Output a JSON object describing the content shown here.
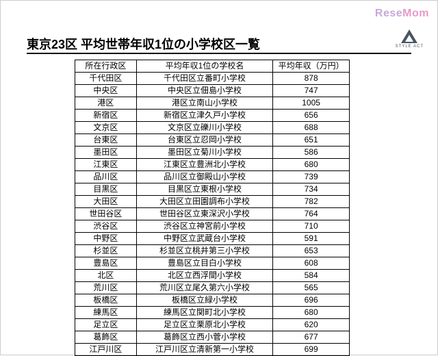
{
  "watermark": {
    "part1": "Rese",
    "part2": "Mom"
  },
  "logo": {
    "text": "STYLE ACT"
  },
  "title": "東京23区 平均世帯年収1位の小学校区一覧",
  "table": {
    "headers": {
      "ward": "所在行政区",
      "school": "平均年収1位の学校名",
      "income": "平均年収（万円）"
    },
    "rows": [
      {
        "ward": "千代田区",
        "school": "千代田区立番町小学校",
        "income": "878"
      },
      {
        "ward": "中央区",
        "school": "中央区立佃島小学校",
        "income": "747"
      },
      {
        "ward": "港区",
        "school": "港区立南山小学校",
        "income": "1005"
      },
      {
        "ward": "新宿区",
        "school": "新宿区立津久戸小学校",
        "income": "656"
      },
      {
        "ward": "文京区",
        "school": "文京区立礫川小学校",
        "income": "688"
      },
      {
        "ward": "台東区",
        "school": "台東区立忍岡小学校",
        "income": "651"
      },
      {
        "ward": "墨田区",
        "school": "墨田区立菊川小学校",
        "income": "586"
      },
      {
        "ward": "江東区",
        "school": "江東区立豊洲北小学校",
        "income": "680"
      },
      {
        "ward": "品川区",
        "school": "品川区立御殿山小学校",
        "income": "739"
      },
      {
        "ward": "目黒区",
        "school": "目黒区立東根小学校",
        "income": "734"
      },
      {
        "ward": "大田区",
        "school": "大田区立田園調布小学校",
        "income": "782"
      },
      {
        "ward": "世田谷区",
        "school": "世田谷区立東深沢小学校",
        "income": "764"
      },
      {
        "ward": "渋谷区",
        "school": "渋谷区立神宮前小学校",
        "income": "710"
      },
      {
        "ward": "中野区",
        "school": "中野区立武蔵台小学校",
        "income": "591"
      },
      {
        "ward": "杉並区",
        "school": "杉並区立桃井第三小学校",
        "income": "653"
      },
      {
        "ward": "豊島区",
        "school": "豊島区立目白小学校",
        "income": "608"
      },
      {
        "ward": "北区",
        "school": "北区立西浮間小学校",
        "income": "584"
      },
      {
        "ward": "荒川区",
        "school": "荒川区立尾久第六小学校",
        "income": "565"
      },
      {
        "ward": "板橋区",
        "school": "板橋区立緑小学校",
        "income": "696"
      },
      {
        "ward": "練馬区",
        "school": "練馬区立関町北小学校",
        "income": "680"
      },
      {
        "ward": "足立区",
        "school": "足立区立栗原北小学校",
        "income": "620"
      },
      {
        "ward": "葛飾区",
        "school": "葛飾区立西小菅小学校",
        "income": "677"
      },
      {
        "ward": "江戸川区",
        "school": "江戸川区立清新第一小学校",
        "income": "699"
      }
    ]
  }
}
